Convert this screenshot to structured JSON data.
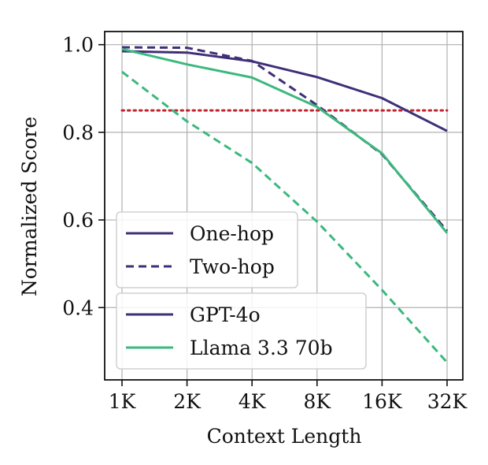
{
  "chart_data": {
    "type": "line",
    "xlabel": "Context Length",
    "ylabel": "Normalized Score",
    "categories": [
      "1K",
      "2K",
      "4K",
      "8K",
      "16K",
      "32K"
    ],
    "yticks": [
      "0.4",
      "0.6",
      "0.8",
      "1.0"
    ],
    "ylim": [
      0.235,
      1.03
    ],
    "grid": true,
    "threshold": {
      "value": 0.85,
      "color": "#c0232b",
      "style": "dotted"
    },
    "series": [
      {
        "model": "GPT-4o",
        "hop": "One-hop",
        "color": "#3f2f78",
        "dash": "solid",
        "values": [
          0.985,
          0.982,
          0.962,
          0.926,
          0.878,
          0.803
        ]
      },
      {
        "model": "GPT-4o",
        "hop": "Two-hop",
        "color": "#3f2f78",
        "dash": "dashed",
        "values": [
          0.994,
          0.993,
          0.963,
          0.862,
          0.75,
          0.575
        ]
      },
      {
        "model": "Llama 3.3 70b",
        "hop": "One-hop",
        "color": "#3cb87e",
        "dash": "solid",
        "values": [
          0.99,
          0.955,
          0.925,
          0.858,
          0.752,
          0.57
        ]
      },
      {
        "model": "Llama 3.3 70b",
        "hop": "Two-hop",
        "color": "#3cb87e",
        "dash": "dashed",
        "values": [
          0.938,
          0.825,
          0.73,
          0.596,
          0.44,
          0.275
        ]
      }
    ],
    "legends": [
      {
        "location": "center-left",
        "entries": [
          {
            "label": "One-hop",
            "color": "#3f2f78",
            "dash": "solid"
          },
          {
            "label": "Two-hop",
            "color": "#3f2f78",
            "dash": "dashed"
          }
        ]
      },
      {
        "location": "lower-left",
        "entries": [
          {
            "label": "GPT-4o",
            "color": "#3f2f78",
            "dash": "solid"
          },
          {
            "label": "Llama 3.3 70b",
            "color": "#3cb87e",
            "dash": "solid"
          }
        ]
      }
    ]
  }
}
